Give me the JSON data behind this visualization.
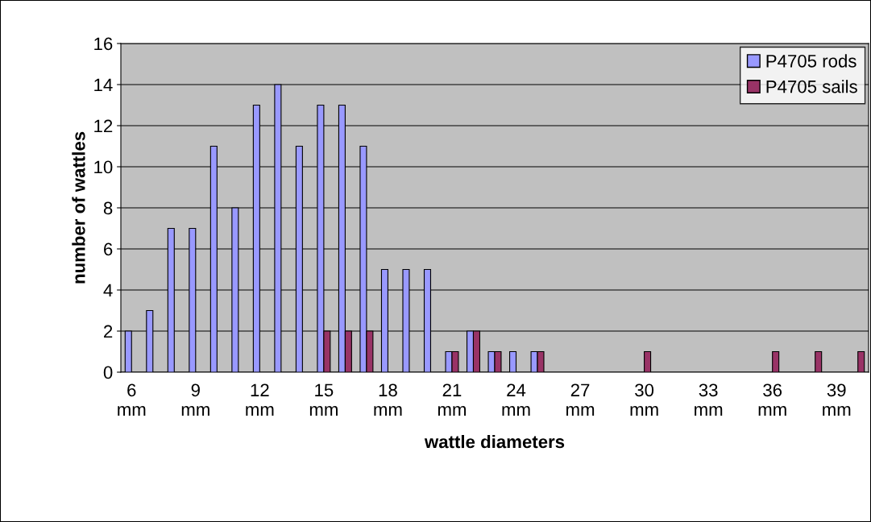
{
  "chart_data": {
    "type": "bar",
    "xlabel": "wattle diameters",
    "ylabel": "number of wattles",
    "categories": [
      "6 mm",
      null,
      null,
      "9 mm",
      null,
      null,
      "12 mm",
      null,
      null,
      "15 mm",
      null,
      null,
      "18 mm",
      null,
      null,
      "21 mm",
      null,
      null,
      "24 mm",
      null,
      null,
      "27 mm",
      null,
      null,
      "30 mm",
      null,
      null,
      "33 mm",
      null,
      null,
      "36 mm",
      null,
      null,
      "39 mm",
      null
    ],
    "series": [
      {
        "name": "P4705 rods",
        "color": "#9999ff",
        "values": [
          2,
          3,
          7,
          7,
          11,
          8,
          13,
          14,
          11,
          13,
          13,
          11,
          5,
          5,
          5,
          1,
          2,
          1,
          1,
          1,
          0,
          0,
          0,
          0,
          0,
          0,
          0,
          0,
          0,
          0,
          0,
          0,
          0,
          0,
          0
        ]
      },
      {
        "name": "P4705 sails",
        "color": "#993366",
        "values": [
          0,
          0,
          0,
          0,
          0,
          0,
          0,
          0,
          0,
          2,
          2,
          2,
          0,
          0,
          0,
          1,
          2,
          1,
          0,
          1,
          0,
          0,
          0,
          0,
          1,
          0,
          0,
          0,
          0,
          0,
          1,
          0,
          1,
          0,
          1
        ]
      }
    ],
    "ylim": [
      0,
      16
    ],
    "yticks": [
      0,
      2,
      4,
      6,
      8,
      10,
      12,
      14,
      16
    ],
    "grid": "y",
    "legend": "top right"
  }
}
